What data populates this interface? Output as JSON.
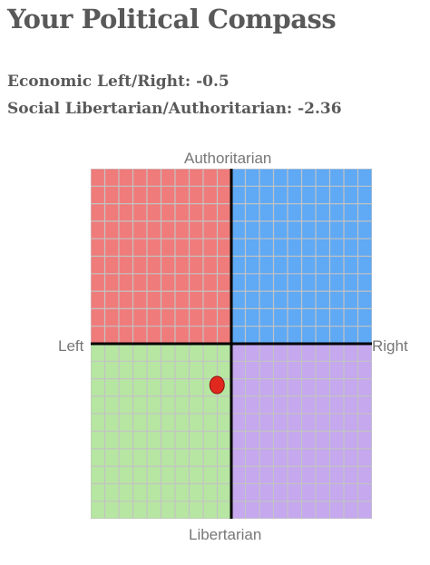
{
  "page": {
    "title": "Your Political Compass"
  },
  "scores": {
    "economic_line": "Economic Left/Right: -0.5",
    "social_line": "Social Libertarian/Authoritarian: -2.36",
    "economic": -0.5,
    "social": -2.36
  },
  "axes": {
    "top": "Authoritarian",
    "bottom": "Libertarian",
    "left": "Left",
    "right": "Right",
    "range": [
      -10,
      10
    ]
  },
  "quadrants": {
    "authoritarian_left_color": "#f07b7b",
    "authoritarian_right_color": "#5fa9f5",
    "libertarian_left_color": "#b6e6a2",
    "libertarian_right_color": "#c5a8ee",
    "grid_line_color": "#c3c3c3",
    "axis_color": "#000000"
  },
  "marker": {
    "color": "#e0281e",
    "outline": "#8a1410"
  }
}
